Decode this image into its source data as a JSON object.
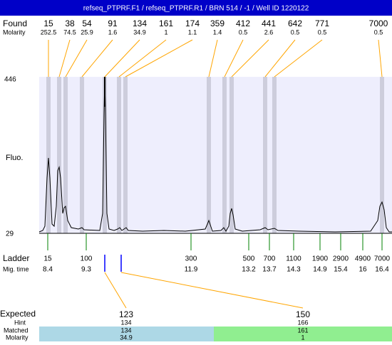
{
  "header": {
    "title": "refseq_PTPRF.F1 / refseq_PTPRF.R1 / BRN 514 / -1 / Well ID 1220122"
  },
  "found": {
    "label": "Found",
    "molarity_label": "Molarity",
    "peaks": [
      {
        "size": "15",
        "molarity": "252.5"
      },
      {
        "size": "38",
        "molarity": "74.5"
      },
      {
        "size": "54",
        "molarity": "25.9"
      },
      {
        "size": "91",
        "molarity": "1.6"
      },
      {
        "size": "134",
        "molarity": "34.9"
      },
      {
        "size": "161",
        "molarity": "1"
      },
      {
        "size": "174",
        "molarity": "1.1"
      },
      {
        "size": "359",
        "molarity": "1.4"
      },
      {
        "size": "412",
        "molarity": "0.5"
      },
      {
        "size": "441",
        "molarity": "2.6"
      },
      {
        "size": "642",
        "molarity": "0.5"
      },
      {
        "size": "771",
        "molarity": "0.5"
      },
      {
        "size": "7000",
        "molarity": "0.5"
      }
    ]
  },
  "axis": {
    "top": "446",
    "bottom": "29",
    "label": "Fluo."
  },
  "ladder": {
    "label": "Ladder",
    "time_label": "Mig. time",
    "items": [
      {
        "size": "15",
        "time": "8.4"
      },
      {
        "size": "100",
        "time": "9.3"
      },
      {
        "size": "300",
        "time": "11.9"
      },
      {
        "size": "500",
        "time": "13.2"
      },
      {
        "size": "700",
        "time": "13.7"
      },
      {
        "size": "1100",
        "time": "14.3"
      },
      {
        "size": "1900",
        "time": "14.9"
      },
      {
        "size": "2900",
        "time": "15.4"
      },
      {
        "size": "4900",
        "time": "16"
      },
      {
        "size": "7000",
        "time": "16.4"
      }
    ]
  },
  "expected": {
    "label": "Expected",
    "hint_label": "Hint",
    "matched_label": "Matched",
    "molarity_label": "Molarity",
    "items": [
      {
        "size": "123",
        "hint": "134",
        "matched": "134",
        "molarity": "34.9"
      },
      {
        "size": "150",
        "hint": "166",
        "matched": "161",
        "molarity": "1"
      }
    ]
  }
}
